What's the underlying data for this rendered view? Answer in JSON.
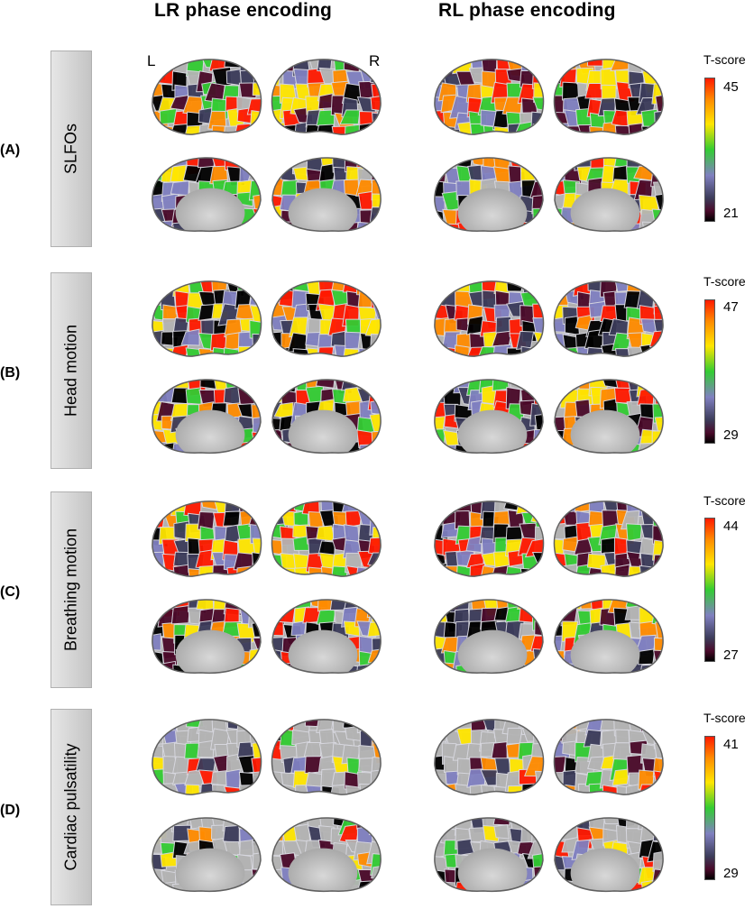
{
  "columns": [
    "LR phase encoding",
    "RL phase encoding"
  ],
  "hemisphere_labels": {
    "left": "L",
    "right": "R"
  },
  "colorbar_title": "T-score",
  "rows": [
    {
      "id": "(A)",
      "label": "SLFOs",
      "max": "45",
      "min": "21"
    },
    {
      "id": "(B)",
      "label": "Head motion",
      "max": "47",
      "min": "29"
    },
    {
      "id": "(C)",
      "label": "Breathing motion",
      "max": "44",
      "min": "27"
    },
    {
      "id": "(D)",
      "label": "Cardiac pulsatility",
      "max": "41",
      "min": "29"
    }
  ],
  "colors": {
    "panel_gray": "#d6d6d6",
    "colormap": [
      "#ff1a00",
      "#ff8c00",
      "#ffe600",
      "#33cc33",
      "#8080c0",
      "#3c3c5a",
      "#4a0a2a",
      "#000000"
    ]
  }
}
